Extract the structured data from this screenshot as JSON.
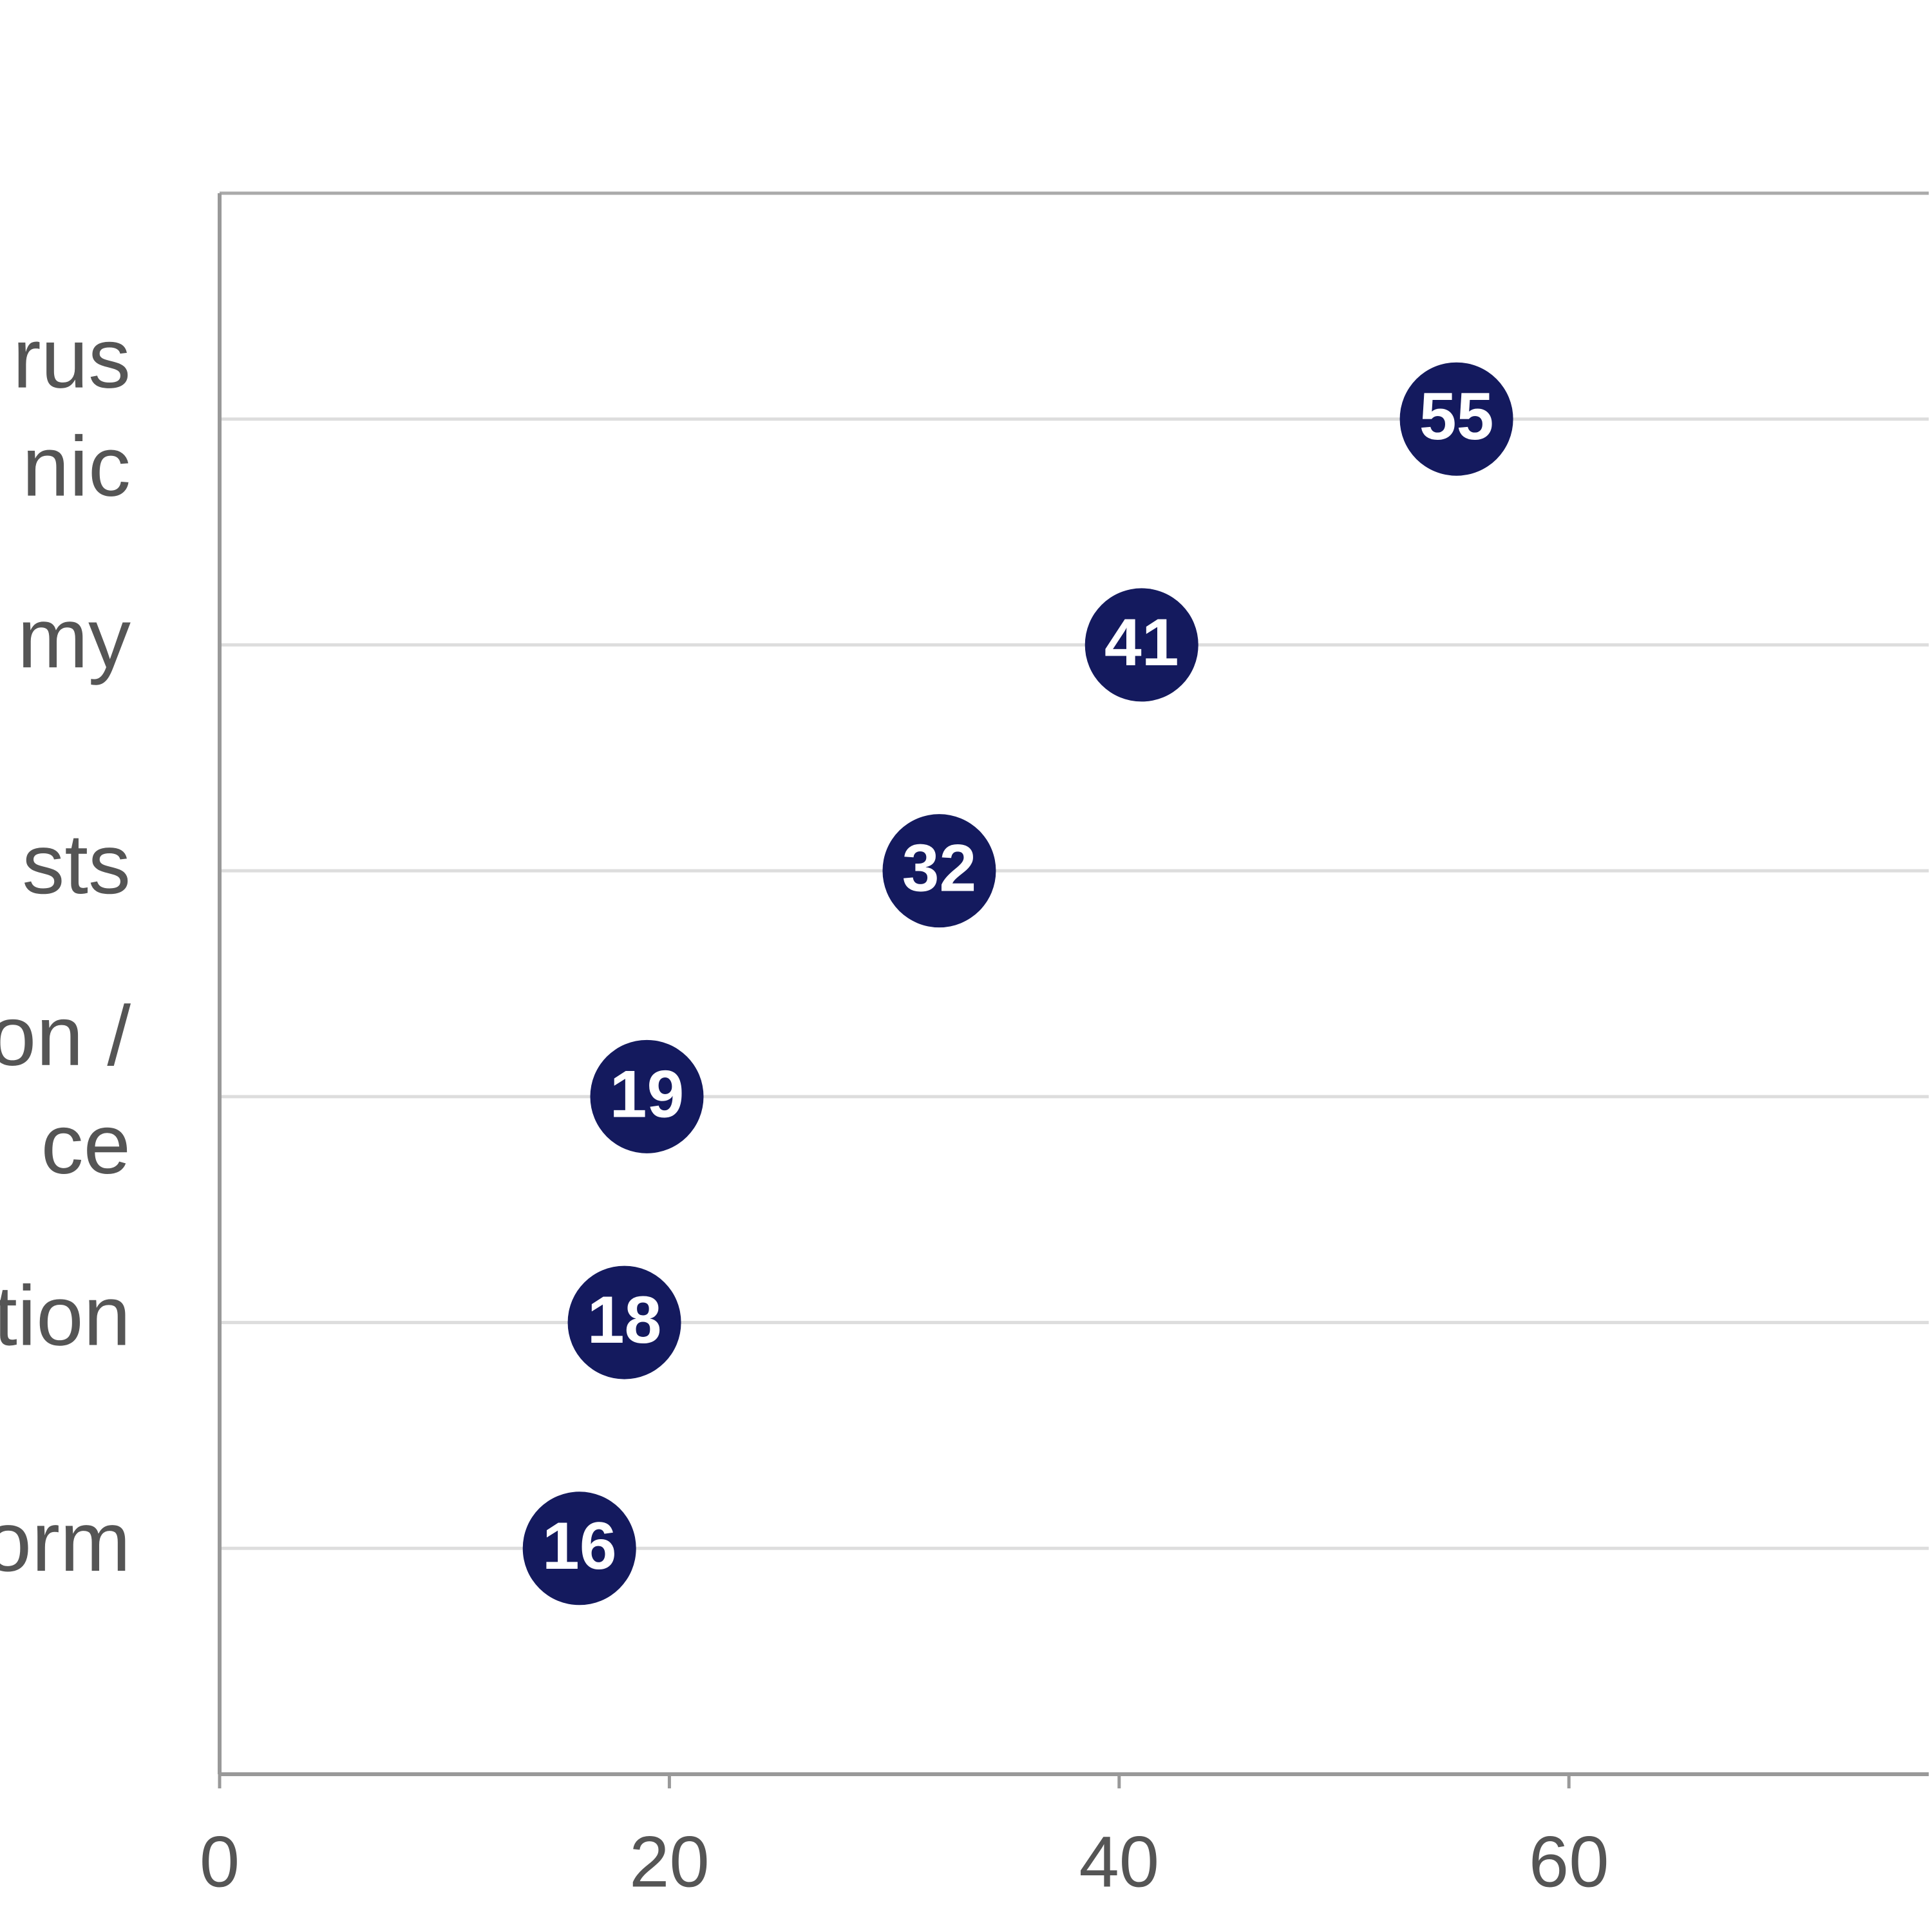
{
  "chart_data": {
    "type": "dot",
    "categories": [
      [
        "rus",
        "nic"
      ],
      [
        "my"
      ],
      [
        "sts"
      ],
      [
        "on /",
        "ce"
      ],
      [
        "tion"
      ],
      [
        "orm"
      ]
    ],
    "series": [
      {
        "color": "#141a5e",
        "values": [
          55,
          41,
          32,
          19,
          18,
          16
        ]
      }
    ],
    "xlim": [
      0,
      76
    ],
    "xticks": [
      0,
      20,
      40,
      60
    ],
    "grid": true
  }
}
